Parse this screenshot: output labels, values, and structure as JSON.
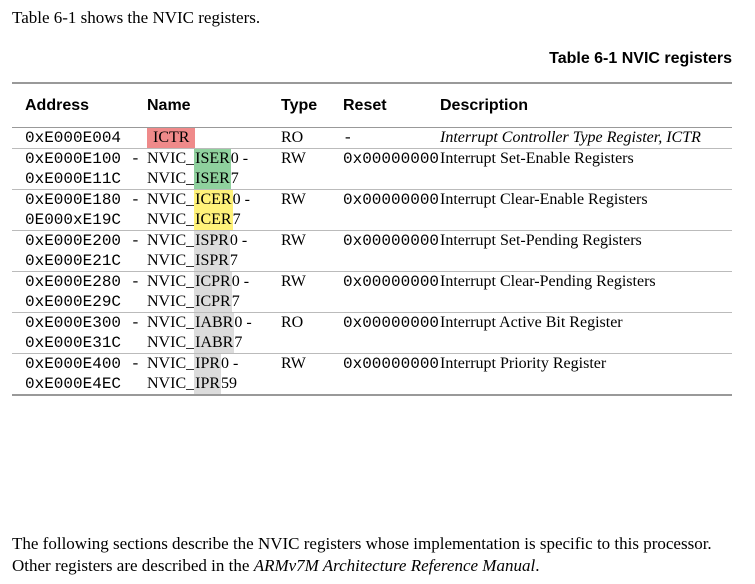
{
  "intro": "Table 6-1 shows the NVIC registers.",
  "caption": "Table 6-1 NVIC registers",
  "table": {
    "header": [
      "Address",
      "Name",
      "Type",
      "Reset",
      "Description"
    ],
    "rows": [
      {
        "address": [
          "0xE000E004"
        ],
        "name": [
          [
            "",
            "ICTR",
            ""
          ]
        ],
        "highlight": "#ef8a8a",
        "type": "RO",
        "reset": "-",
        "description": "Interrupt Controller Type Register, ICTR",
        "italic": true
      },
      {
        "address": [
          "0xE000E100 -",
          "0xE000E11C"
        ],
        "name": [
          [
            "NVIC_",
            "ISER",
            "0 -"
          ],
          [
            "NVIC_",
            "ISER",
            "7"
          ]
        ],
        "highlight": "#8fd19e",
        "type": "RW",
        "reset": "0x00000000",
        "description": "Interrupt Set-Enable Registers"
      },
      {
        "address": [
          "0xE000E180 -",
          "0E000xE19C"
        ],
        "name": [
          [
            "NVIC_",
            "ICER",
            "0 -"
          ],
          [
            "NVIC_",
            "ICER",
            "7"
          ]
        ],
        "highlight": "#fff27a",
        "type": "RW",
        "reset": "0x00000000",
        "description": "Interrupt Clear-Enable Registers"
      },
      {
        "address": [
          "0xE000E200 -",
          "0xE000E21C"
        ],
        "name": [
          [
            "NVIC_",
            "ISPR",
            "0 -"
          ],
          [
            "NVIC_",
            "ISPR",
            "7"
          ]
        ],
        "highlight": "#dcdcdc",
        "type": "RW",
        "reset": "0x00000000",
        "description": "Interrupt Set-Pending Registers"
      },
      {
        "address": [
          "0xE000E280 -",
          "0xE000E29C"
        ],
        "name": [
          [
            "NVIC_",
            "ICPR",
            "0 -"
          ],
          [
            "NVIC_",
            "ICPR",
            "7"
          ]
        ],
        "highlight": "#dcdcdc",
        "type": "RW",
        "reset": "0x00000000",
        "description": "Interrupt Clear-Pending Registers"
      },
      {
        "address": [
          "0xE000E300 -",
          "0xE000E31C"
        ],
        "name": [
          [
            "NVIC_",
            "IABR",
            "0 -"
          ],
          [
            "NVIC_",
            "IABR",
            "7"
          ]
        ],
        "highlight": "#dcdcdc",
        "type": "RO",
        "reset": "0x00000000",
        "description": "Interrupt Active Bit Register"
      },
      {
        "address": [
          "0xE000E400 -",
          "0xE000E4EC"
        ],
        "name": [
          [
            "NVIC_",
            "IPR",
            "0 -"
          ],
          [
            "NVIC_",
            "IPR",
            "59"
          ]
        ],
        "highlight": "#dcdcdc",
        "type": "RW",
        "reset": "0x00000000",
        "description": "Interrupt Priority Register"
      }
    ]
  },
  "outro": [
    {
      "text": "The following sections describe the NVIC registers whose implementation is specific to this processor. Other registers are described in the "
    },
    {
      "text": "ARMv7M Architecture Reference Manual",
      "italic": true
    },
    {
      "text": "."
    }
  ]
}
